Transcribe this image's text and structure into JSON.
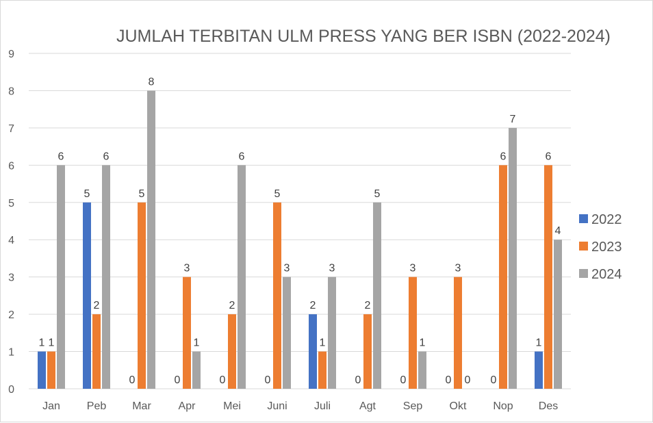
{
  "chart_data": {
    "type": "bar",
    "title": "JUMLAH TERBITAN ULM PRESS YANG BER ISBN (2022-2024)",
    "categories": [
      "Jan",
      "Peb",
      "Mar",
      "Apr",
      "Mei",
      "Juni",
      "Juli",
      "Agt",
      "Sep",
      "Okt",
      "Nop",
      "Des"
    ],
    "series": [
      {
        "name": "2022",
        "color": "#4472c4",
        "values": [
          1,
          5,
          0,
          0,
          0,
          0,
          2,
          0,
          0,
          0,
          0,
          1
        ]
      },
      {
        "name": "2023",
        "color": "#ed7d31",
        "values": [
          1,
          2,
          5,
          3,
          2,
          5,
          1,
          2,
          3,
          3,
          6,
          6
        ]
      },
      {
        "name": "2024",
        "color": "#a5a5a5",
        "values": [
          6,
          6,
          8,
          1,
          6,
          3,
          3,
          5,
          1,
          0,
          7,
          4
        ]
      }
    ],
    "ylim": [
      0,
      9
    ],
    "yticks": [
      0,
      1,
      2,
      3,
      4,
      5,
      6,
      7,
      8,
      9
    ],
    "grid": true,
    "data_labels": true,
    "legend_position": "right"
  }
}
